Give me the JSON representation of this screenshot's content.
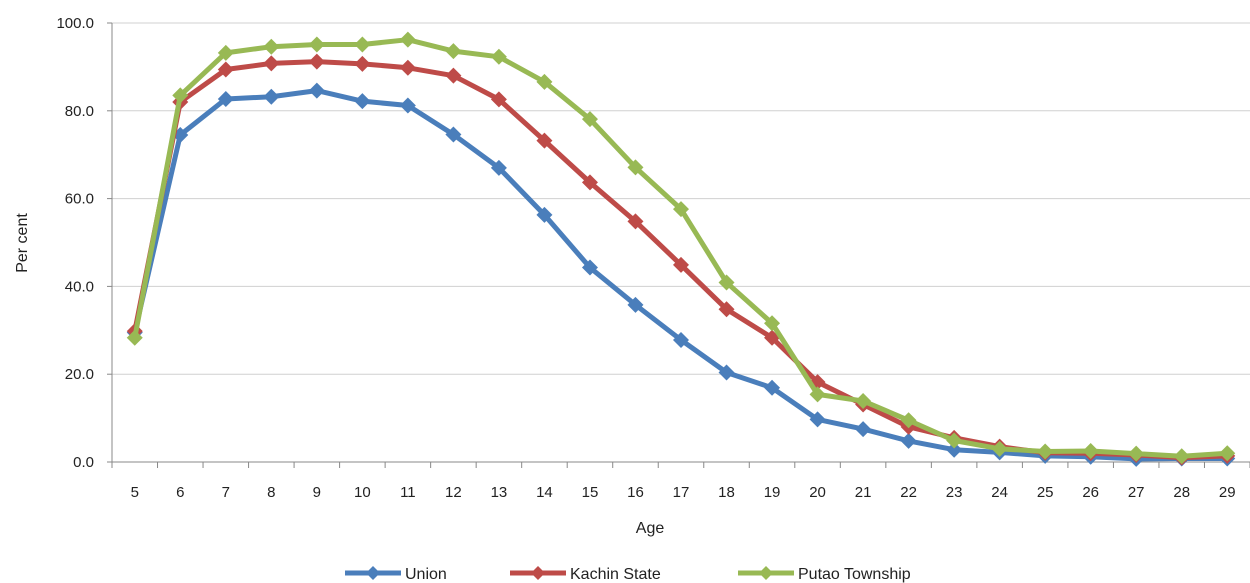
{
  "chart_data": {
    "type": "line",
    "title": "",
    "xlabel": "Age",
    "ylabel": "Per cent",
    "categories": [
      "5",
      "6",
      "7",
      "8",
      "9",
      "10",
      "11",
      "12",
      "13",
      "14",
      "15",
      "16",
      "17",
      "18",
      "19",
      "20",
      "21",
      "22",
      "23",
      "24",
      "25",
      "26",
      "27",
      "28",
      "29"
    ],
    "ylim": [
      0,
      100
    ],
    "yticks": [
      "0.0",
      "20.0",
      "40.0",
      "60.0",
      "80.0",
      "100.0"
    ],
    "grid": true,
    "legend_position": "bottom",
    "series": [
      {
        "name": "Union",
        "color": "#4a7ebb",
        "values": [
          29.5,
          74.5,
          82.7,
          83.2,
          84.6,
          82.2,
          81.2,
          74.6,
          67.0,
          56.3,
          44.3,
          35.8,
          27.8,
          20.4,
          16.9,
          9.7,
          7.5,
          4.8,
          2.8,
          2.2,
          1.4,
          1.2,
          0.7,
          0.8,
          0.8
        ]
      },
      {
        "name": "Kachin State",
        "color": "#be4b48",
        "values": [
          29.8,
          82.0,
          89.4,
          90.8,
          91.2,
          90.7,
          89.8,
          88.0,
          82.6,
          73.2,
          63.7,
          54.8,
          44.9,
          34.8,
          28.3,
          18.2,
          13.1,
          8.0,
          5.5,
          3.5,
          2.1,
          2.0,
          1.6,
          1.0,
          1.4
        ]
      },
      {
        "name": "Putao Township",
        "color": "#98b954",
        "values": [
          28.3,
          83.5,
          93.2,
          94.6,
          95.1,
          95.1,
          96.2,
          93.6,
          92.3,
          86.6,
          78.1,
          67.1,
          57.6,
          40.9,
          31.6,
          15.4,
          13.9,
          9.5,
          4.9,
          3.0,
          2.4,
          2.5,
          1.9,
          1.3,
          2.0
        ]
      }
    ]
  }
}
